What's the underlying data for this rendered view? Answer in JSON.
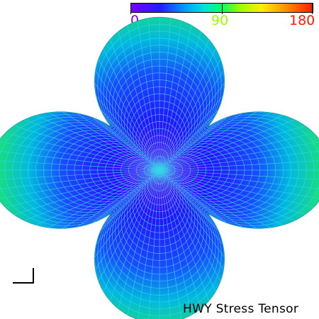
{
  "colorbar": {
    "min_label": "0",
    "mid_label": "90",
    "max_label": "180",
    "min_color": "#7a00ff",
    "mid_color": "#9aff00",
    "max_color": "#ff1a00"
  },
  "caption": "HWY Stress Tensor",
  "surface": {
    "description_icon": "stress-tensor-glyph",
    "wire_color": "#38d6e8",
    "center_color": "#7a00ff",
    "edge_color": "#19e07a"
  }
}
